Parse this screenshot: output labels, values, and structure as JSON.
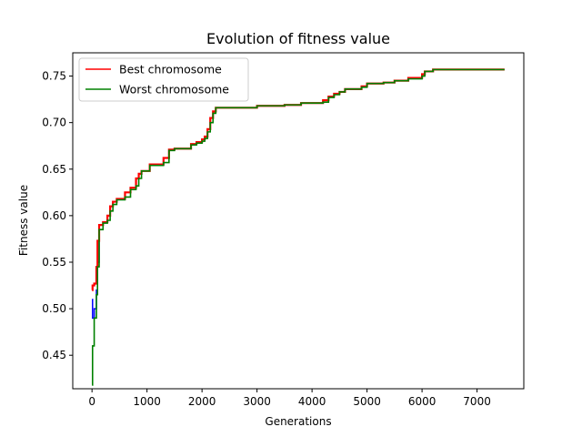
{
  "chart_data": {
    "type": "line",
    "title": "Evolution of fitness value",
    "xlabel": "Generations",
    "ylabel": "Fitness value",
    "xlim": [
      -350,
      7850
    ],
    "ylim": [
      0.414,
      0.775
    ],
    "xticks": [
      0,
      1000,
      2000,
      3000,
      4000,
      5000,
      6000,
      7000
    ],
    "yticks": [
      0.45,
      0.5,
      0.55,
      0.6,
      0.65,
      0.7,
      0.75
    ],
    "ytick_labels": [
      "0.45",
      "0.50",
      "0.55",
      "0.60",
      "0.65",
      "0.70",
      "0.75"
    ],
    "grid": false,
    "legend": {
      "position": "upper-left",
      "entries": [
        "Best chromosome",
        "Worst chromosome"
      ]
    },
    "series": [
      {
        "name": "Best chromosome",
        "color": "#ff0000",
        "x": [
          0,
          10,
          40,
          80,
          100,
          130,
          200,
          280,
          330,
          380,
          450,
          600,
          700,
          800,
          850,
          900,
          1050,
          1300,
          1400,
          1500,
          1800,
          1900,
          2000,
          2050,
          2100,
          2150,
          2200,
          2250,
          2800,
          3000,
          3500,
          3800,
          4200,
          4300,
          4400,
          4500,
          4600,
          4900,
          5000,
          5300,
          5500,
          5750,
          6000,
          6050,
          6200,
          7500
        ],
        "y": [
          0.52,
          0.525,
          0.527,
          0.545,
          0.573,
          0.59,
          0.593,
          0.6,
          0.61,
          0.615,
          0.618,
          0.625,
          0.63,
          0.64,
          0.645,
          0.648,
          0.655,
          0.662,
          0.671,
          0.672,
          0.677,
          0.679,
          0.682,
          0.685,
          0.693,
          0.705,
          0.712,
          0.716,
          0.716,
          0.718,
          0.719,
          0.721,
          0.724,
          0.728,
          0.731,
          0.733,
          0.736,
          0.739,
          0.742,
          0.743,
          0.745,
          0.748,
          0.752,
          0.755,
          0.757,
          0.757
        ]
      },
      {
        "name": "Worst chromosome",
        "color": "#008000",
        "x": [
          0,
          10,
          40,
          80,
          100,
          130,
          200,
          280,
          330,
          380,
          450,
          600,
          700,
          800,
          850,
          900,
          1050,
          1300,
          1400,
          1500,
          1800,
          1900,
          2000,
          2050,
          2100,
          2150,
          2200,
          2250,
          2800,
          3000,
          3500,
          3800,
          4200,
          4300,
          4400,
          4500,
          4600,
          4900,
          5000,
          5300,
          5500,
          5750,
          6000,
          6050,
          6200,
          7500
        ],
        "y": [
          0.418,
          0.46,
          0.49,
          0.515,
          0.545,
          0.585,
          0.592,
          0.595,
          0.605,
          0.612,
          0.617,
          0.62,
          0.628,
          0.632,
          0.64,
          0.648,
          0.654,
          0.657,
          0.67,
          0.672,
          0.676,
          0.678,
          0.68,
          0.683,
          0.69,
          0.7,
          0.71,
          0.716,
          0.716,
          0.718,
          0.719,
          0.721,
          0.722,
          0.727,
          0.73,
          0.733,
          0.736,
          0.738,
          0.742,
          0.743,
          0.745,
          0.747,
          0.75,
          0.755,
          0.757,
          0.757
        ]
      }
    ],
    "extra_series": [
      {
        "color": "#0000ff",
        "x": [
          0,
          10,
          40,
          80,
          100,
          130,
          200
        ],
        "y": [
          0.51,
          0.49,
          0.5,
          0.52,
          0.55,
          0.585,
          0.592
        ]
      }
    ]
  }
}
